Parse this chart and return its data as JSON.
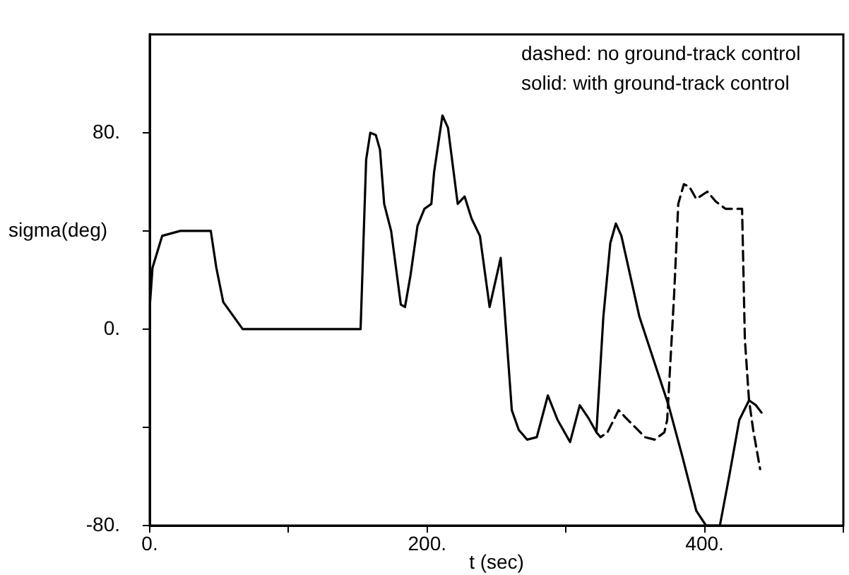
{
  "chart_data": {
    "type": "line",
    "xlabel": "t (sec)",
    "ylabel": "sigma(deg)",
    "annotations": [
      "dashed: no ground-track control",
      "solid: with ground-track control"
    ],
    "xlim": [
      0,
      500
    ],
    "xticks": [
      {
        "value": 0,
        "label": "0."
      },
      {
        "value": 100,
        "label": null
      },
      {
        "value": 200,
        "label": "200."
      },
      {
        "value": 300,
        "label": null
      },
      {
        "value": 400,
        "label": "400."
      },
      {
        "value": 500,
        "label": null
      }
    ],
    "ylim": [
      -80,
      120
    ],
    "yticks": [
      {
        "value": -80,
        "label": "-80."
      },
      {
        "value": -40,
        "label": null
      },
      {
        "value": 0,
        "label": "0."
      },
      {
        "value": 40,
        "label": null
      },
      {
        "value": 80,
        "label": "80."
      }
    ],
    "grid": false,
    "legend": false,
    "marker": "none",
    "series": [
      {
        "color": "#000000",
        "line_style": "solid",
        "x": [
          0,
          2,
          9,
          22,
          44,
          48,
          53,
          67,
          152,
          156,
          159,
          163,
          166,
          169,
          174,
          181,
          184,
          188,
          193,
          198,
          203,
          205,
          211,
          215,
          222,
          227,
          232,
          238,
          245,
          253,
          255,
          261,
          266,
          272,
          279,
          287,
          294,
          303,
          310,
          316,
          322,
          327,
          332,
          336,
          340,
          353,
          374,
          384,
          394,
          401,
          411,
          418,
          425,
          432,
          437,
          441
        ],
        "values": [
          9,
          25,
          38,
          40,
          40,
          25,
          11,
          0,
          0,
          69,
          80,
          79,
          73,
          51,
          40,
          10,
          9,
          22,
          42,
          49,
          51,
          64,
          87,
          82,
          51,
          54,
          45,
          38,
          9,
          29,
          14,
          -33,
          -41,
          -45,
          -44,
          -27,
          -37,
          -46,
          -31,
          -36,
          -42,
          5,
          35,
          43,
          38,
          5,
          -31,
          -52,
          -74,
          -80,
          -80,
          -59,
          -37,
          -29,
          -31,
          -34
        ]
      },
      {
        "color": "#000000",
        "line_style": "dashed",
        "x": [
          322,
          325,
          330,
          338,
          343,
          350,
          357,
          364,
          371,
          373,
          378,
          381,
          385,
          389,
          394,
          402,
          408,
          415,
          427,
          429,
          432,
          435,
          440
        ],
        "values": [
          -42,
          -44,
          -42,
          -33,
          -36,
          -40,
          -44,
          -45,
          -42,
          -37,
          14,
          51,
          59,
          58,
          53,
          56,
          52,
          49,
          49,
          -4,
          -29,
          -41,
          -57
        ]
      }
    ]
  }
}
